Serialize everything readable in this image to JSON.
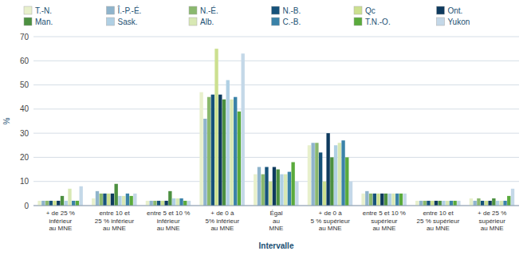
{
  "chart_data": {
    "type": "bar",
    "xlabel": "Intervalle",
    "ylabel": "%",
    "categories": [
      "+ de 25 %\ninférieur\nau MNE",
      "entre 10 et\n25 % inférieur\nau MNE",
      "entre 5 et 10 %\ninférieur\nau MNE",
      "+ de 0 à\n5% inférieur\nau MNE",
      "Égal\nau\nMNE",
      "+ de 0 à\n5 % supérieur\nau MNE",
      "entre 5 et 10 %\nsupérieur\nau MNE",
      "entre 10 et\n25 % supérieur\nau MNE",
      "+ de 25 %\nsupérieur\nau MNE"
    ],
    "series": [
      {
        "name": "T.-N.",
        "color": "#e8f0cc",
        "values": [
          2,
          3,
          2,
          47,
          13,
          25,
          5,
          2,
          3
        ]
      },
      {
        "name": "Î.-P.-É.",
        "color": "#8fb4cc",
        "values": [
          2,
          6,
          2,
          36,
          16,
          26,
          6,
          2,
          2
        ]
      },
      {
        "name": "N.-É.",
        "color": "#8ab86e",
        "values": [
          2,
          5,
          2,
          45,
          13,
          26,
          5,
          2,
          3
        ]
      },
      {
        "name": "N.-B.",
        "color": "#16527a",
        "values": [
          2,
          5,
          2,
          46,
          16,
          22,
          5,
          2,
          2
        ]
      },
      {
        "name": "Qc",
        "color": "#cce090",
        "values": [
          2,
          5,
          2,
          65,
          10,
          10,
          5,
          2,
          2
        ]
      },
      {
        "name": "Ont.",
        "color": "#0e3a5e",
        "values": [
          2,
          5,
          2,
          46,
          16,
          30,
          5,
          2,
          2
        ]
      },
      {
        "name": "Man.",
        "color": "#4c9040",
        "values": [
          4,
          9,
          6,
          44,
          15,
          20,
          5,
          2,
          3
        ]
      },
      {
        "name": "Sask.",
        "color": "#b0d0e4",
        "values": [
          2,
          4,
          3,
          52,
          13,
          25,
          5,
          2,
          2
        ]
      },
      {
        "name": "Alb.",
        "color": "#d8e8b4",
        "values": [
          7,
          4,
          3,
          44,
          13,
          26,
          5,
          2,
          2
        ]
      },
      {
        "name": "C.-B.",
        "color": "#3a82a8",
        "values": [
          2,
          5,
          3,
          45,
          14,
          27,
          5,
          2,
          2
        ]
      },
      {
        "name": "T.N.-O.",
        "color": "#5aaa3c",
        "values": [
          2,
          4,
          2,
          39,
          18,
          20,
          5,
          2,
          4
        ]
      },
      {
        "name": "Yukon",
        "color": "#c4d8e8",
        "values": [
          8,
          5,
          2,
          63,
          10,
          10,
          5,
          2,
          7
        ]
      }
    ],
    "ylim": [
      0,
      70
    ],
    "yticks": [
      0,
      10,
      20,
      30,
      40,
      50,
      60,
      70
    ],
    "grid": true,
    "legend": "top"
  }
}
